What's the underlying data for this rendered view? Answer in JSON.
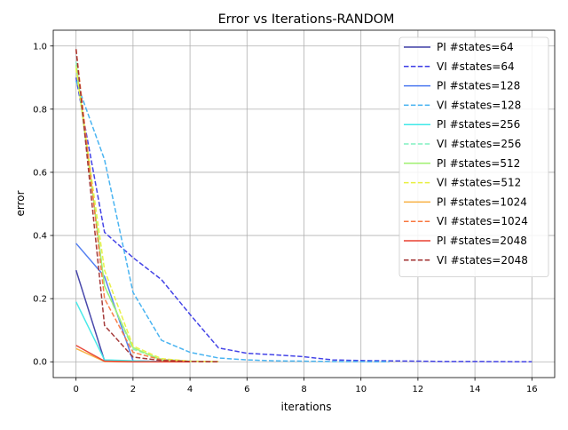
{
  "chart_data": {
    "type": "line",
    "title": "Error vs Iterations-RANDOM",
    "xlabel": "iterations",
    "ylabel": "error",
    "xlim": [
      -0.8,
      16.8
    ],
    "ylim": [
      -0.05,
      1.05
    ],
    "xticks": [
      0,
      2,
      4,
      6,
      8,
      10,
      12,
      14,
      16
    ],
    "yticks": [
      0.0,
      0.2,
      0.4,
      0.6,
      0.8,
      1.0
    ],
    "grid": true,
    "legend_position": "upper-right",
    "series": [
      {
        "name": "PI #states=64",
        "color": "#3f3fa6",
        "dash": "solid",
        "x": [
          0,
          1,
          2,
          3,
          4
        ],
        "y": [
          0.29,
          0.003,
          0.001,
          0.0,
          0.0
        ]
      },
      {
        "name": "VI #states=64",
        "color": "#3a3ae6",
        "dash": "dashed",
        "x": [
          0,
          1,
          2,
          3,
          4,
          5,
          6,
          7,
          8,
          9,
          10,
          11,
          12,
          13,
          14,
          15,
          16
        ],
        "y": [
          0.9,
          0.41,
          0.33,
          0.26,
          0.15,
          0.044,
          0.027,
          0.022,
          0.016,
          0.006,
          0.004,
          0.003,
          0.002,
          0.001,
          0.001,
          0.0005,
          0.0003
        ]
      },
      {
        "name": "PI #states=128",
        "color": "#4a78f0",
        "dash": "solid",
        "x": [
          0,
          1,
          2,
          3,
          4
        ],
        "y": [
          0.375,
          0.27,
          0.003,
          0.001,
          0.0
        ]
      },
      {
        "name": "VI #states=128",
        "color": "#40b0f0",
        "dash": "dashed",
        "x": [
          0,
          1,
          2,
          3,
          4,
          5,
          6,
          7,
          8,
          9,
          10,
          11
        ],
        "y": [
          0.89,
          0.64,
          0.22,
          0.068,
          0.03,
          0.012,
          0.006,
          0.003,
          0.002,
          0.001,
          0.0005,
          0.0003
        ]
      },
      {
        "name": "PI #states=256",
        "color": "#40e8e8",
        "dash": "solid",
        "x": [
          0,
          1,
          2,
          3,
          4
        ],
        "y": [
          0.19,
          0.006,
          0.003,
          0.0,
          0.0
        ]
      },
      {
        "name": "VI #states=256",
        "color": "#80f0c0",
        "dash": "dashed",
        "x": [
          0,
          1,
          2,
          3,
          4,
          5
        ],
        "y": [
          0.95,
          0.24,
          0.04,
          0.008,
          0.002,
          0.0005
        ]
      },
      {
        "name": "PI #states=512",
        "color": "#a0f070",
        "dash": "solid",
        "x": [
          0,
          1,
          2,
          3,
          4
        ],
        "y": [
          0.94,
          0.24,
          0.045,
          0.005,
          0.0
        ]
      },
      {
        "name": "VI #states=512",
        "color": "#e8f040",
        "dash": "dashed",
        "x": [
          0,
          1,
          2,
          3,
          4,
          5
        ],
        "y": [
          0.93,
          0.29,
          0.05,
          0.01,
          0.002,
          0.0005
        ]
      },
      {
        "name": "PI #states=1024",
        "color": "#f8b040",
        "dash": "solid",
        "x": [
          0,
          1,
          2,
          3,
          4
        ],
        "y": [
          0.042,
          0.001,
          0.0,
          0.0,
          0.0
        ]
      },
      {
        "name": "VI #states=1024",
        "color": "#f87840",
        "dash": "dashed",
        "x": [
          0,
          1,
          2,
          3,
          4,
          5
        ],
        "y": [
          0.99,
          0.2,
          0.03,
          0.006,
          0.001,
          0.0003
        ]
      },
      {
        "name": "PI #states=2048",
        "color": "#e84030",
        "dash": "solid",
        "x": [
          0,
          1,
          2,
          3,
          4
        ],
        "y": [
          0.052,
          0.002,
          0.0,
          0.0,
          0.0
        ]
      },
      {
        "name": "VI #states=2048",
        "color": "#a03030",
        "dash": "dashed",
        "x": [
          0,
          1,
          2,
          3,
          4,
          5
        ],
        "y": [
          0.99,
          0.115,
          0.015,
          0.004,
          0.001,
          0.0002
        ]
      }
    ]
  }
}
